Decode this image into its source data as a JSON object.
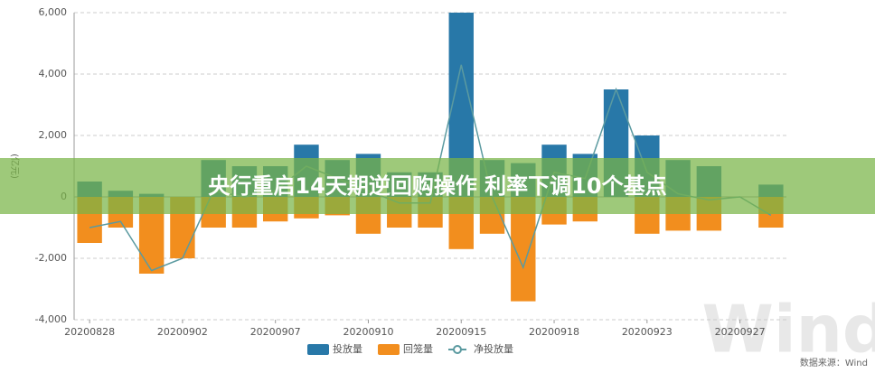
{
  "chart_data": {
    "type": "bar",
    "title": "央行重启14天期逆回购操作 利率下调10个基点",
    "y_label": "(亿元)",
    "source": "数据来源：Wind",
    "watermark": "Wind",
    "categories": [
      "20200828",
      null,
      null,
      "20200902",
      null,
      null,
      "20200907",
      null,
      null,
      "20200910",
      null,
      null,
      "20200915",
      null,
      null,
      "20200918",
      null,
      null,
      "20200923",
      null,
      null,
      "20200927",
      null
    ],
    "series": [
      {
        "name": "投放量",
        "color": "#2878a8",
        "values": [
          500,
          200,
          100,
          0,
          1200,
          1000,
          1000,
          1700,
          1200,
          1400,
          800,
          800,
          6000,
          1200,
          1100,
          1700,
          1400,
          3500,
          2000,
          1200,
          1000,
          0,
          400
        ]
      },
      {
        "name": "回笼量",
        "color": "#f28e1e",
        "values": [
          -1500,
          -1000,
          -2500,
          -2000,
          -1000,
          -1000,
          -800,
          -700,
          -600,
          -1200,
          -1000,
          -1000,
          -1700,
          -1200,
          -3400,
          -900,
          -800,
          0,
          -1200,
          -1100,
          -1100,
          0,
          -1000
        ]
      },
      {
        "name": "净投放量",
        "color": "#5b9aa0",
        "line": true,
        "values": [
          -1000,
          -800,
          -2400,
          -2000,
          200,
          0,
          200,
          1000,
          600,
          200,
          -200,
          -200,
          4300,
          0,
          -2300,
          800,
          600,
          3500,
          800,
          100,
          -100,
          0,
          -600
        ]
      }
    ],
    "ylim": [
      -4000,
      6000
    ],
    "yticks": [
      {
        "value": -4000,
        "label": "-4,000"
      },
      {
        "value": -2000,
        "label": "-2,000"
      },
      0,
      {
        "value": 2000,
        "label": "2,000"
      },
      {
        "value": 4000,
        "label": "4,000"
      },
      {
        "value": 6000,
        "label": "6,000"
      }
    ],
    "grid": true
  }
}
